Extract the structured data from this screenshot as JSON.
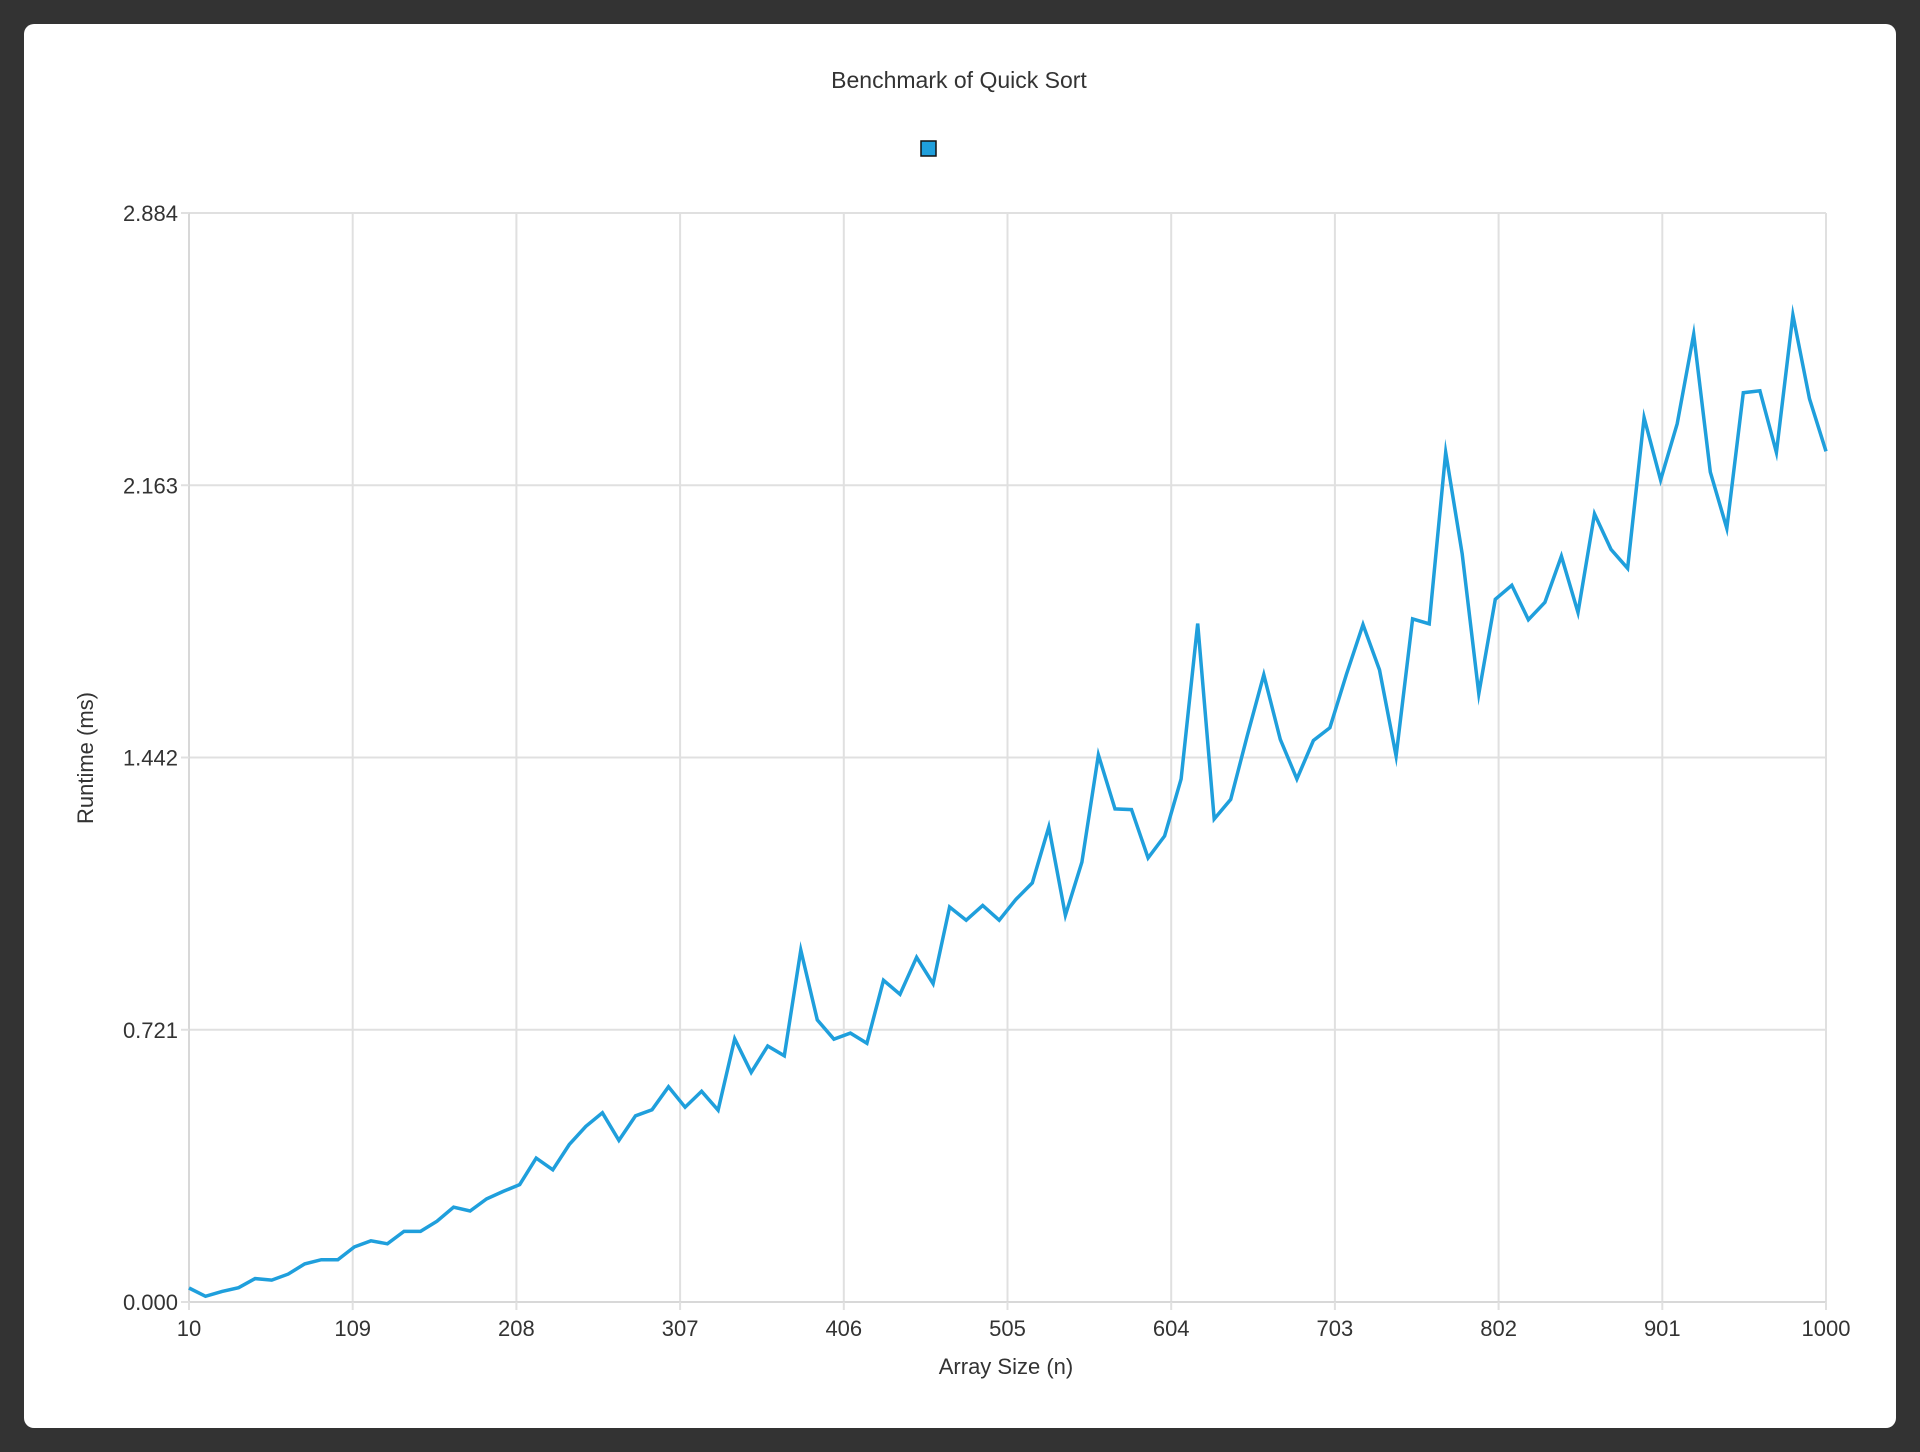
{
  "chart_data": {
    "type": "line",
    "title": "Benchmark of Quick Sort",
    "xlabel": "Array Size (n)",
    "ylabel": "Runtime (ms)",
    "xlim": [
      10,
      1000
    ],
    "ylim": [
      0,
      2.884
    ],
    "x_ticks": [
      "10",
      "109",
      "208",
      "307",
      "406",
      "505",
      "604",
      "703",
      "802",
      "901",
      "1000"
    ],
    "y_ticks": [
      "0.000",
      "0.721",
      "1.442",
      "2.163",
      "2.884"
    ],
    "grid": true,
    "legend": "top-center",
    "series": [
      {
        "name": "",
        "color": "#1f9fdc",
        "x": [
          10,
          20,
          30,
          40,
          50,
          60,
          70,
          80,
          90,
          100,
          110,
          120,
          130,
          140,
          150,
          160,
          170,
          180,
          190,
          200,
          210,
          220,
          230,
          240,
          250,
          260,
          270,
          280,
          290,
          300,
          310,
          320,
          330,
          340,
          350,
          360,
          370,
          380,
          390,
          400,
          410,
          420,
          430,
          440,
          450,
          460,
          470,
          480,
          490,
          500,
          510,
          520,
          530,
          540,
          550,
          560,
          570,
          580,
          590,
          600,
          610,
          620,
          630,
          640,
          650,
          660,
          670,
          680,
          690,
          700,
          710,
          720,
          730,
          740,
          750,
          760,
          770,
          780,
          790,
          800,
          810,
          820,
          830,
          840,
          850,
          860,
          870,
          880,
          890,
          900,
          910,
          920,
          930,
          940,
          950,
          960,
          970,
          980,
          990,
          1000
        ],
        "y": [
          0.037,
          0.015,
          0.028,
          0.038,
          0.062,
          0.058,
          0.074,
          0.101,
          0.112,
          0.112,
          0.146,
          0.162,
          0.154,
          0.187,
          0.187,
          0.214,
          0.251,
          0.241,
          0.273,
          0.293,
          0.311,
          0.381,
          0.35,
          0.417,
          0.465,
          0.501,
          0.428,
          0.493,
          0.509,
          0.57,
          0.516,
          0.558,
          0.508,
          0.697,
          0.608,
          0.678,
          0.652,
          0.932,
          0.747,
          0.696,
          0.712,
          0.685,
          0.852,
          0.815,
          0.913,
          0.843,
          1.046,
          1.011,
          1.05,
          1.011,
          1.066,
          1.11,
          1.258,
          1.024,
          1.165,
          1.449,
          1.306,
          1.304,
          1.176,
          1.234,
          1.385,
          1.797,
          1.279,
          1.331,
          1.5,
          1.661,
          1.49,
          1.385,
          1.487,
          1.521,
          1.663,
          1.794,
          1.674,
          1.446,
          1.809,
          1.796,
          2.25,
          1.981,
          1.611,
          1.861,
          1.898,
          1.807,
          1.853,
          1.975,
          1.826,
          2.087,
          1.993,
          1.943,
          2.342,
          2.177,
          2.326,
          2.563,
          2.198,
          2.049,
          2.408,
          2.413,
          2.25,
          2.614,
          2.392,
          2.253
        ]
      }
    ]
  }
}
